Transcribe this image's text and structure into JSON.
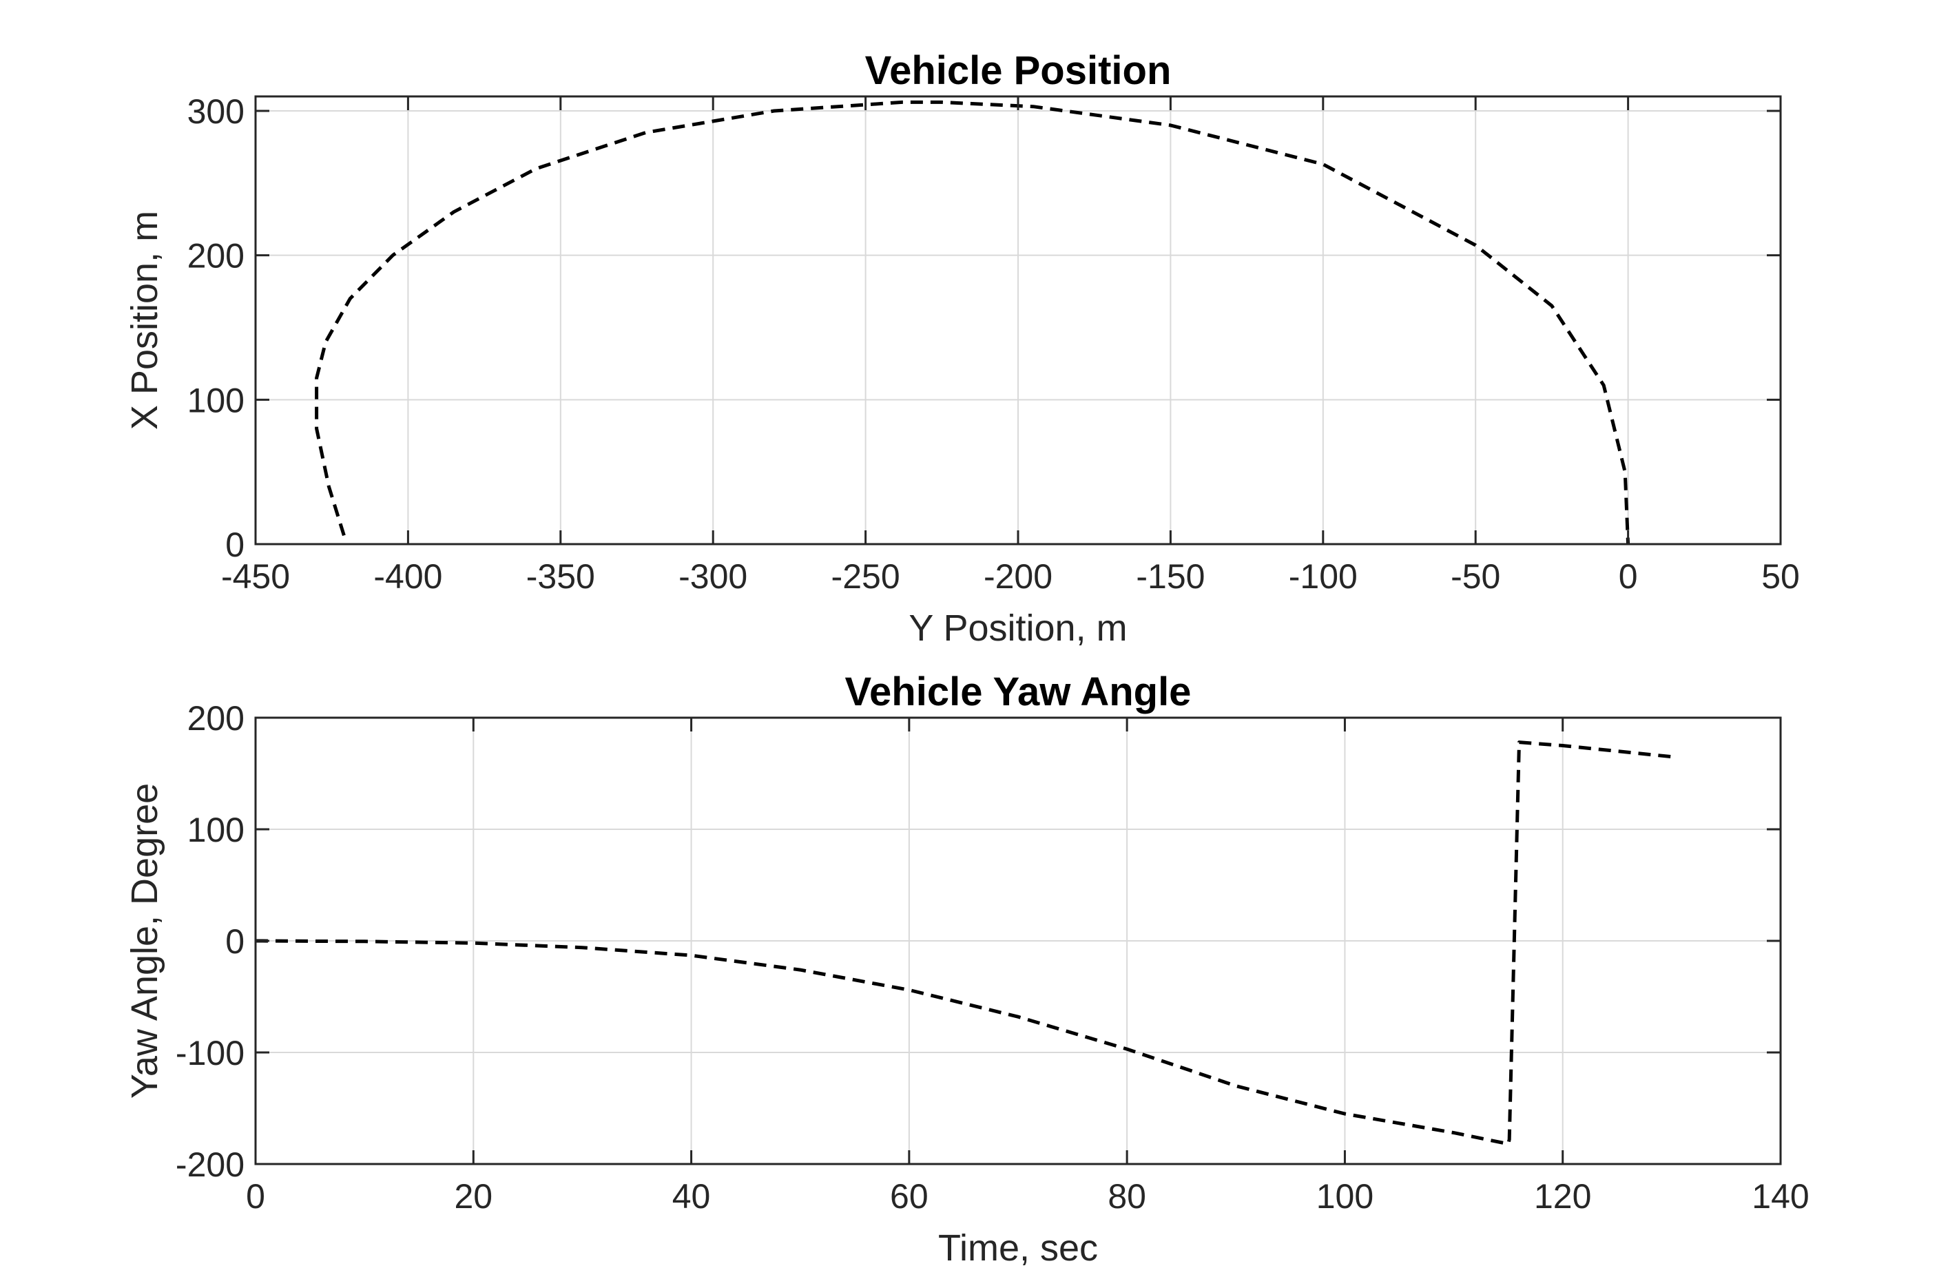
{
  "chart_data": [
    {
      "type": "line",
      "title": "Vehicle Position",
      "xlabel": "Y Position, m",
      "ylabel": "X Position, m",
      "xlim": [
        -450,
        50
      ],
      "ylim": [
        0,
        310
      ],
      "xticks": [
        -450,
        -400,
        -350,
        -300,
        -250,
        -200,
        -150,
        -100,
        -50,
        0,
        50
      ],
      "yticks": [
        0,
        100,
        200,
        300
      ],
      "grid": true,
      "line_style": "dashed",
      "line_color": "#000000",
      "series": [
        {
          "x": [
            -421,
            -426,
            -430,
            -430,
            -427,
            -419,
            -405,
            -385,
            -358,
            -322,
            -280,
            -238,
            -225,
            -195,
            -150,
            -100,
            -50,
            -25,
            -8,
            -1,
            0
          ],
          "y": [
            6,
            40,
            80,
            115,
            140,
            170,
            200,
            230,
            260,
            285,
            300,
            306,
            306,
            303,
            290,
            263,
            207,
            165,
            110,
            50,
            0
          ]
        }
      ]
    },
    {
      "type": "line",
      "title": "Vehicle Yaw Angle",
      "xlabel": "Time, sec",
      "ylabel": "Yaw Angle, Degree",
      "xlim": [
        0,
        140
      ],
      "ylim": [
        -200,
        200
      ],
      "xticks": [
        0,
        20,
        40,
        60,
        80,
        100,
        120,
        140
      ],
      "yticks": [
        -200,
        -100,
        0,
        100,
        200
      ],
      "grid": true,
      "line_style": "dashed",
      "line_color": "#000000",
      "series": [
        {
          "x": [
            0,
            10,
            20,
            30,
            40,
            50,
            60,
            70,
            80,
            90,
            100,
            110,
            115,
            115.1,
            116,
            120,
            130
          ],
          "y": [
            0,
            -0.5,
            -2,
            -6,
            -13,
            -26,
            -44,
            -68,
            -97,
            -130,
            -155,
            -172,
            -182,
            -178,
            178,
            175,
            165
          ]
        }
      ]
    }
  ]
}
